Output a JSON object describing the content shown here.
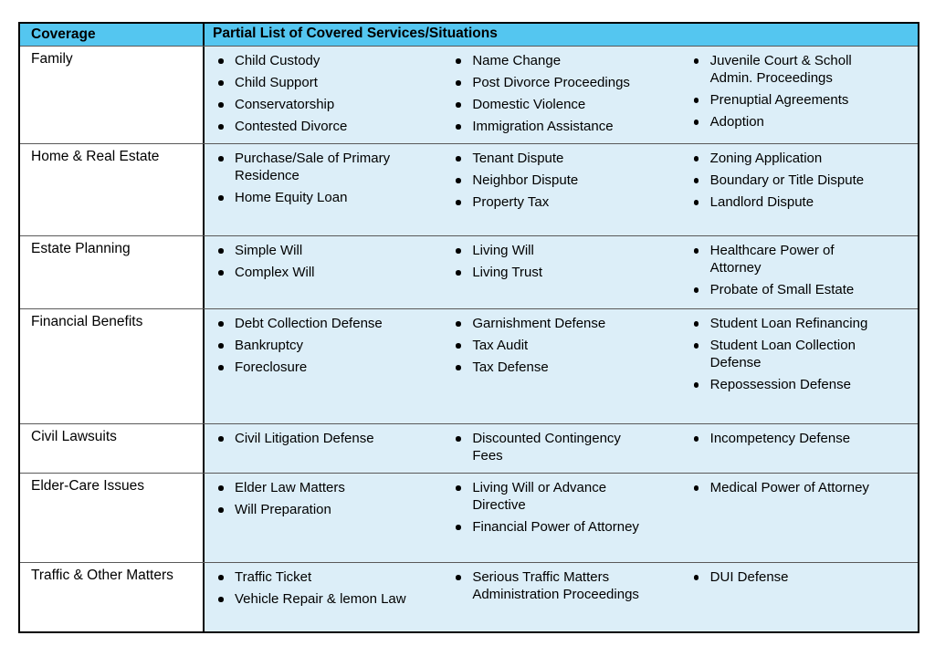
{
  "colors": {
    "header_bg": "#54c6f0",
    "services_bg": "#dceef8",
    "coverage_bg": "#ffffff",
    "outer_border": "#000000",
    "inner_border": "#595959"
  },
  "table": {
    "headers": [
      "Coverage",
      "Partial List of Covered Services/Situations"
    ],
    "rows": [
      {
        "coverage": "Family",
        "columns": [
          [
            "Child Custody",
            "Child Support",
            "Conservatorship",
            "Contested Divorce"
          ],
          [
            "Name Change",
            "Post Divorce Proceedings",
            "Domestic Violence",
            "Immigration Assistance"
          ],
          [
            "Juvenile Court & Scholl Admin. Proceedings",
            "Prenuptial Agreements",
            "Adoption"
          ]
        ]
      },
      {
        "coverage": "Home & Real Estate",
        "columns": [
          [
            "Purchase/Sale of Primary Residence",
            "Home Equity Loan"
          ],
          [
            "Tenant Dispute",
            "Neighbor Dispute",
            "Property Tax"
          ],
          [
            "Zoning Application",
            "Boundary or Title Dispute",
            "Landlord Dispute"
          ]
        ]
      },
      {
        "coverage": "Estate Planning",
        "columns": [
          [
            "Simple Will",
            "Complex Will"
          ],
          [
            "Living Will",
            "Living Trust"
          ],
          [
            "Healthcare Power of Attorney",
            "Probate of Small Estate"
          ]
        ]
      },
      {
        "coverage": "Financial Benefits",
        "columns": [
          [
            "Debt Collection Defense",
            "Bankruptcy",
            "Foreclosure"
          ],
          [
            "Garnishment Defense",
            "Tax Audit",
            "Tax Defense"
          ],
          [
            "Student Loan Refinancing",
            "Student Loan Collection Defense",
            "Repossession Defense"
          ]
        ]
      },
      {
        "coverage": "Civil Lawsuits",
        "columns": [
          [
            "Civil Litigation Defense"
          ],
          [
            "Discounted Contingency Fees"
          ],
          [
            "Incompetency Defense"
          ]
        ]
      },
      {
        "coverage": "Elder-Care Issues",
        "columns": [
          [
            "Elder Law Matters",
            "Will Preparation"
          ],
          [
            "Living Will or Advance Directive",
            "Financial Power of Attorney"
          ],
          [
            "Medical Power of Attorney"
          ]
        ]
      },
      {
        "coverage": "Traffic & Other Matters",
        "columns": [
          [
            "Traffic Ticket",
            "Vehicle Repair & lemon Law"
          ],
          [
            "Serious Traffic Matters Administration Proceedings"
          ],
          [
            "DUI Defense"
          ]
        ]
      }
    ]
  }
}
